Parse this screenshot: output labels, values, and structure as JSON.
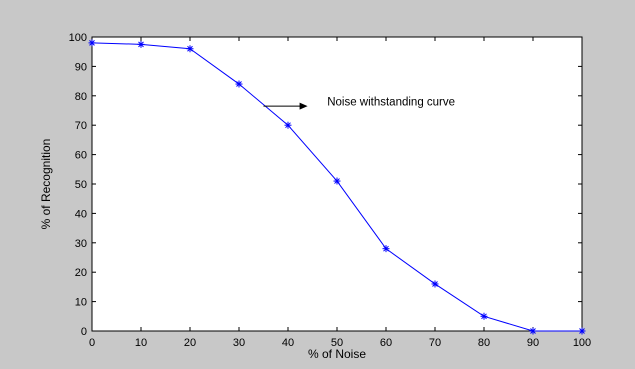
{
  "chart_data": {
    "type": "line",
    "title": "",
    "xlabel": "% of Noise",
    "ylabel": "% of Recognition",
    "xlim": [
      0,
      100
    ],
    "ylim": [
      0,
      100
    ],
    "x_ticks": [
      0,
      10,
      20,
      30,
      40,
      50,
      60,
      70,
      80,
      90,
      100
    ],
    "y_ticks": [
      0,
      10,
      20,
      30,
      40,
      50,
      60,
      70,
      80,
      90,
      100
    ],
    "grid": false,
    "series": [
      {
        "marker": "asterisk",
        "color": "#0000ff",
        "x": [
          0,
          10,
          20,
          30,
          40,
          50,
          60,
          70,
          80,
          90,
          100
        ],
        "y": [
          98,
          97.5,
          96,
          84,
          70,
          51,
          28,
          16,
          5,
          0,
          0
        ]
      }
    ],
    "annotation": {
      "text": "Noise withstanding curve",
      "arrow_from": [
        35,
        76.5
      ],
      "arrow_to": [
        44,
        76.5
      ],
      "text_at": [
        48,
        78
      ]
    }
  },
  "colors": {
    "background": "#c8c8c8",
    "plot_area": "#ffffff",
    "line": "#0000ff",
    "axes": "#000000"
  }
}
